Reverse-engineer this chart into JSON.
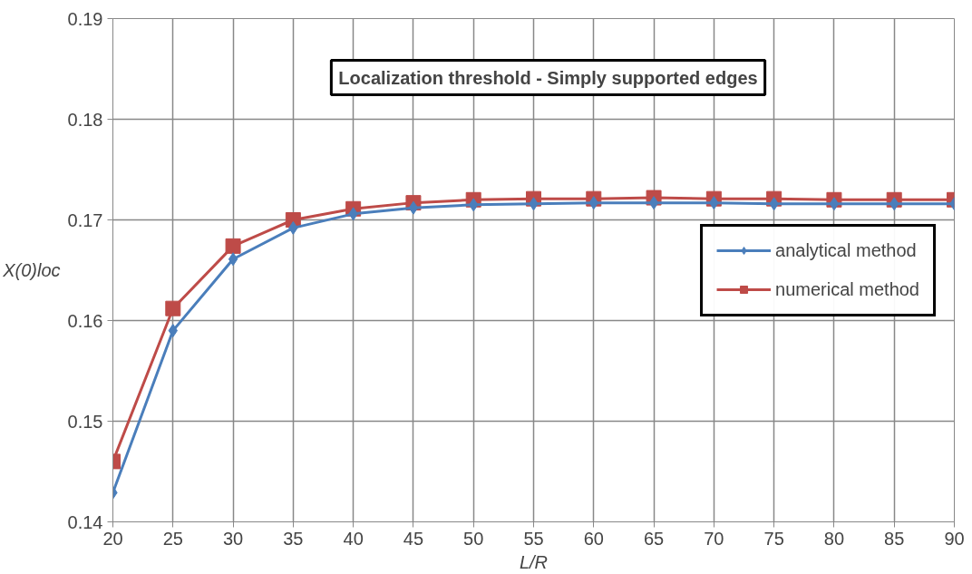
{
  "chart_data": {
    "type": "line",
    "title": "Localization threshold - Simply supported edges",
    "xlabel": "L/R",
    "ylabel": "X(0)loc",
    "x": [
      20,
      25,
      30,
      35,
      40,
      45,
      50,
      55,
      60,
      65,
      70,
      75,
      80,
      85,
      90
    ],
    "series": [
      {
        "name": "analytical method",
        "color": "#4a7ebb",
        "marker": "diamond",
        "values": [
          0.1429,
          0.159,
          0.1661,
          0.1692,
          0.1706,
          0.1712,
          0.1715,
          0.1716,
          0.1717,
          0.1717,
          0.1717,
          0.1716,
          0.1716,
          0.1716,
          0.1716
        ]
      },
      {
        "name": "numerical method",
        "color": "#be4b48",
        "marker": "square",
        "values": [
          0.146,
          0.1612,
          0.1674,
          0.17,
          0.1711,
          0.1717,
          0.172,
          0.1721,
          0.1721,
          0.1722,
          0.1721,
          0.1721,
          0.172,
          0.172,
          0.172
        ]
      }
    ],
    "xlim": [
      20,
      90
    ],
    "xticks": [
      20,
      25,
      30,
      35,
      40,
      45,
      50,
      55,
      60,
      65,
      70,
      75,
      80,
      85,
      90
    ],
    "ylim": [
      0.14,
      0.19
    ],
    "yticks": [
      0.14,
      0.15,
      0.16,
      0.17,
      0.18,
      0.19
    ],
    "grid": true,
    "legend": "right",
    "line_style": "solid"
  }
}
